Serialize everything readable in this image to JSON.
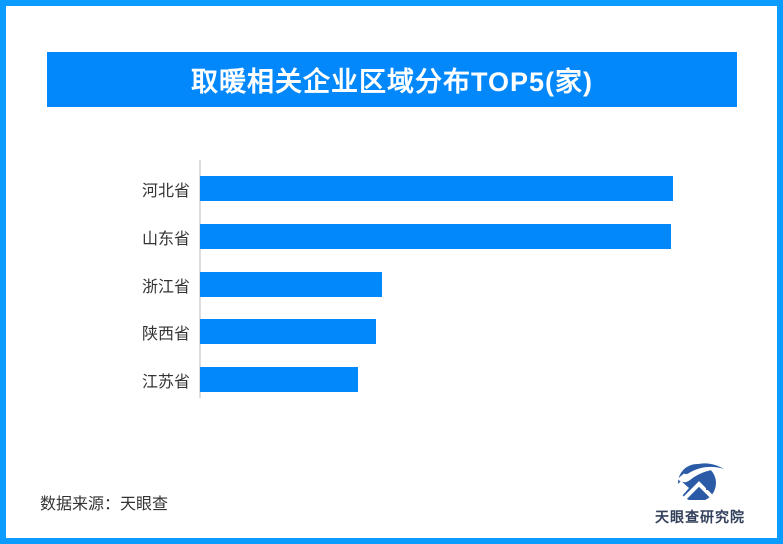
{
  "frame": {
    "border_color": "#0a9dff"
  },
  "header": {
    "title": "取暖相关企业区域分布TOP5(家)",
    "background": "#0288fb",
    "text_color": "#ffffff"
  },
  "chart_data": {
    "type": "bar",
    "orientation": "horizontal",
    "title": "取暖相关企业区域分布TOP5(家)",
    "categories": [
      "河北省",
      "山东省",
      "浙江省",
      "陕西省",
      "江苏省"
    ],
    "values": [
      100,
      99.6,
      38.5,
      37.2,
      33.4
    ],
    "value_scale": "relative, longest bar = 100 (no numeric labels shown on chart)",
    "xlabel": "",
    "ylabel": "",
    "xlim": [
      0,
      100
    ],
    "grid": false,
    "legend": false,
    "value_labels": false,
    "bar_color": "#0288fb",
    "axis_line_color": "#dedede"
  },
  "footer": {
    "source_text": "数据来源：天眼查",
    "brand_name": "天眼查研究院",
    "brand_color": "#33415c",
    "logo_blue": "#2b5ba7"
  }
}
